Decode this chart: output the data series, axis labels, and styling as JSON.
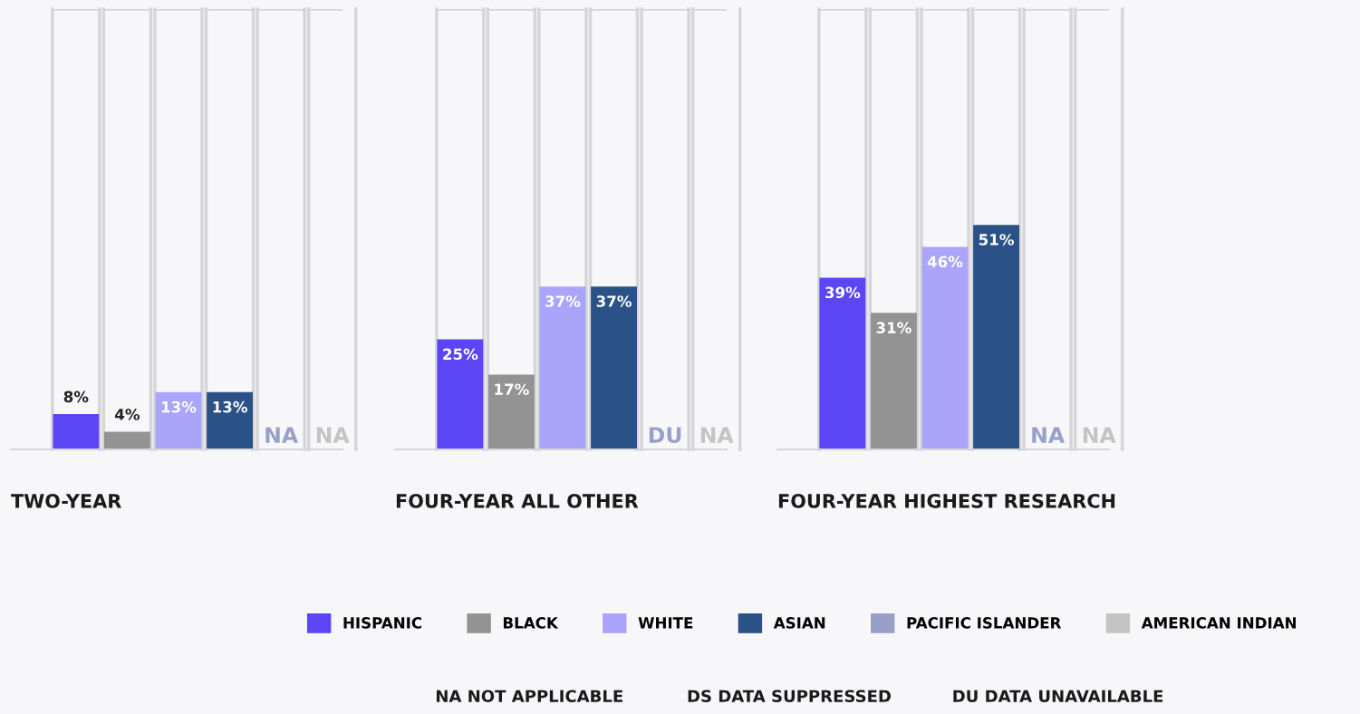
{
  "chart_data": [
    {
      "type": "bar",
      "xlabel": "TWO-YEAR",
      "categories": [
        null
      ],
      "ylim": [
        0,
        100
      ],
      "tick_labels": false,
      "legend": "bottom",
      "ref_lines": [
        {
          "axis": "y",
          "value": 100,
          "color": "#d6d6d9"
        }
      ],
      "series": [
        {
          "name": "HISPANIC",
          "color": "#5b45f5",
          "values": [
            8
          ],
          "value_labels": [
            "8%"
          ]
        },
        {
          "name": "BLACK",
          "color": "#939393",
          "values": [
            4
          ],
          "value_labels": [
            "4%"
          ]
        },
        {
          "name": "WHITE",
          "color": "#aba4fb",
          "values": [
            13
          ],
          "value_labels": [
            "13%"
          ]
        },
        {
          "name": "ASIAN",
          "color": "#2b5286",
          "values": [
            13
          ],
          "value_labels": [
            "13%"
          ]
        },
        {
          "name": "PACIFIC ISLANDER",
          "color": "#98a0c8",
          "values": [
            null
          ],
          "value_labels": [
            "NA"
          ]
        },
        {
          "name": "AMERICAN INDIAN",
          "color": "#c4c4c4",
          "values": [
            null
          ],
          "value_labels": [
            "NA"
          ]
        }
      ],
      "annotations": [
        "NA NOT APPLICABLE",
        "DS DATA SUPPRESSED",
        "DU DATA UNAVAILABLE"
      ]
    },
    {
      "type": "bar",
      "xlabel": "FOUR-YEAR ALL OTHER",
      "categories": [
        null
      ],
      "ylim": [
        0,
        100
      ],
      "tick_labels": false,
      "ref_lines": [
        {
          "axis": "y",
          "value": 100,
          "color": "#d6d6d9"
        }
      ],
      "series": [
        {
          "color": "#5b45f5",
          "values": [
            25
          ],
          "value_labels": [
            "25%"
          ]
        },
        {
          "color": "#939393",
          "values": [
            17
          ],
          "value_labels": [
            "17%"
          ]
        },
        {
          "color": "#aba4fb",
          "values": [
            37
          ],
          "value_labels": [
            "37%"
          ]
        },
        {
          "color": "#2b5286",
          "values": [
            37
          ],
          "value_labels": [
            "37%"
          ]
        },
        {
          "color": "#98a0c8",
          "values": [
            null
          ],
          "value_labels": [
            "DU"
          ]
        },
        {
          "color": "#c4c4c4",
          "values": [
            null
          ],
          "value_labels": [
            "NA"
          ]
        }
      ]
    },
    {
      "type": "bar",
      "xlabel": "FOUR-YEAR HIGHEST RESEARCH",
      "categories": [
        null
      ],
      "ylim": [
        0,
        100
      ],
      "tick_labels": false,
      "ref_lines": [
        {
          "axis": "y",
          "value": 100,
          "color": "#d6d6d9"
        }
      ],
      "series": [
        {
          "color": "#5b45f5",
          "values": [
            39
          ],
          "value_labels": [
            "39%"
          ]
        },
        {
          "color": "#939393",
          "values": [
            31
          ],
          "value_labels": [
            "31%"
          ]
        },
        {
          "color": "#aba4fb",
          "values": [
            46
          ],
          "value_labels": [
            "46%"
          ]
        },
        {
          "color": "#2b5286",
          "values": [
            51
          ],
          "value_labels": [
            "51%"
          ]
        },
        {
          "color": "#98a0c8",
          "values": [
            null
          ],
          "value_labels": [
            "NA"
          ]
        },
        {
          "color": "#c4c4c4",
          "values": [
            null
          ],
          "value_labels": [
            "NA"
          ]
        }
      ]
    }
  ]
}
